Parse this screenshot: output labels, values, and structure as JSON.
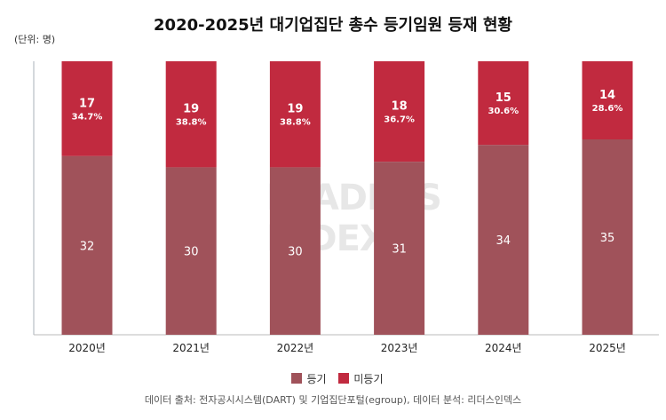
{
  "chart_data": {
    "type": "bar",
    "stacked": true,
    "normalized": true,
    "title": "2020-2025년 대기업집단 총수 등기임원 등재 현황",
    "unit_label": "(단위: 명)",
    "categories": [
      "2020년",
      "2021년",
      "2022년",
      "2023년",
      "2024년",
      "2025년"
    ],
    "series": [
      {
        "name": "등기",
        "color": "#a0525a",
        "values": [
          32,
          30,
          30,
          31,
          34,
          35
        ]
      },
      {
        "name": "미등기",
        "color": "#c12a3f",
        "values": [
          17,
          19,
          19,
          18,
          15,
          14
        ],
        "pct_labels": [
          "34.7%",
          "38.8%",
          "38.8%",
          "36.7%",
          "30.6%",
          "28.6%"
        ]
      }
    ],
    "ylim": [
      0,
      100
    ],
    "grid": false,
    "legend_placement": "bottom"
  },
  "source": "데이터 출처: 전자공시시스템(DART) 및 기업집단포털(egroup), 데이터 분석: 리더스인덱스",
  "watermark": "LEADERS INDEX"
}
